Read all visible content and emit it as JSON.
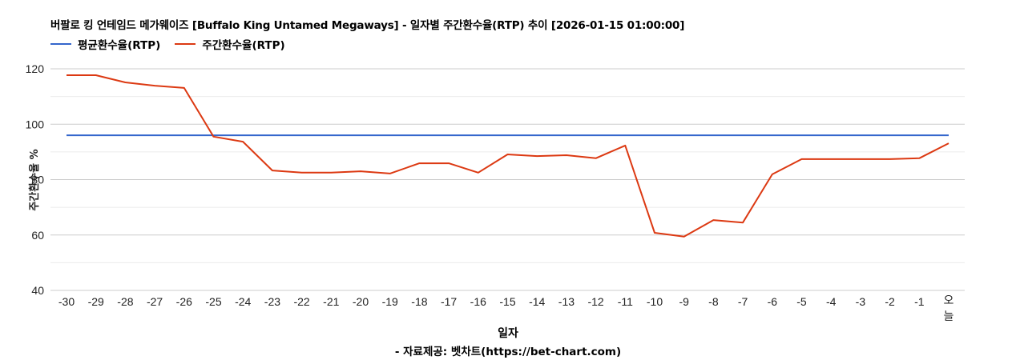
{
  "chart": {
    "title": "버팔로 킹 언테임드 메가웨이즈 [Buffalo King Untamed Megaways] - 일자별 주간환수율(RTP) 추이 [2026-01-15 01:00:00]",
    "legend": [
      {
        "label": "평균환수율(RTP)",
        "color": "#3366cc"
      },
      {
        "label": "주간환수율(RTP)",
        "color": "#dc3912"
      }
    ],
    "xlabel": "일자",
    "ylabel": "주간환수율 %",
    "footer": "- 자료제공: 벳차트(https://bet-chart.com)"
  },
  "chart_data": {
    "type": "line",
    "title": "버팔로 킹 언테임드 메가웨이즈 [Buffalo King Untamed Megaways] - 일자별 주간환수율(RTP) 추이 [2026-01-15 01:00:00]",
    "xlabel": "일자",
    "ylabel": "주간환수율 %",
    "ylim": [
      40,
      120
    ],
    "yticks": [
      40,
      60,
      80,
      100,
      120
    ],
    "grid": true,
    "legend_position": "top-left",
    "categories": [
      "-30",
      "-29",
      "-28",
      "-27",
      "-26",
      "-25",
      "-24",
      "-23",
      "-22",
      "-21",
      "-20",
      "-19",
      "-18",
      "-17",
      "-16",
      "-15",
      "-14",
      "-13",
      "-12",
      "-11",
      "-10",
      "-9",
      "-8",
      "-7",
      "-6",
      "-5",
      "-4",
      "-3",
      "-2",
      "-1",
      "오늘"
    ],
    "series": [
      {
        "name": "평균환수율(RTP)",
        "color": "#3366cc",
        "values": [
          96,
          96,
          96,
          96,
          96,
          96,
          96,
          96,
          96,
          96,
          96,
          96,
          96,
          96,
          96,
          96,
          96,
          96,
          96,
          96,
          96,
          96,
          96,
          96,
          96,
          96,
          96,
          96,
          96,
          96,
          96
        ]
      },
      {
        "name": "주간환수율(RTP)",
        "color": "#dc3912",
        "values": [
          117.7,
          117.7,
          115.1,
          113.9,
          113.1,
          95.5,
          93.7,
          83.3,
          82.5,
          82.5,
          83.0,
          82.2,
          85.9,
          85.9,
          82.5,
          89.1,
          88.5,
          88.8,
          87.7,
          92.3,
          60.8,
          59.4,
          65.4,
          64.5,
          81.9,
          87.4,
          87.4,
          87.4,
          87.4,
          87.7,
          93.1
        ]
      }
    ]
  }
}
